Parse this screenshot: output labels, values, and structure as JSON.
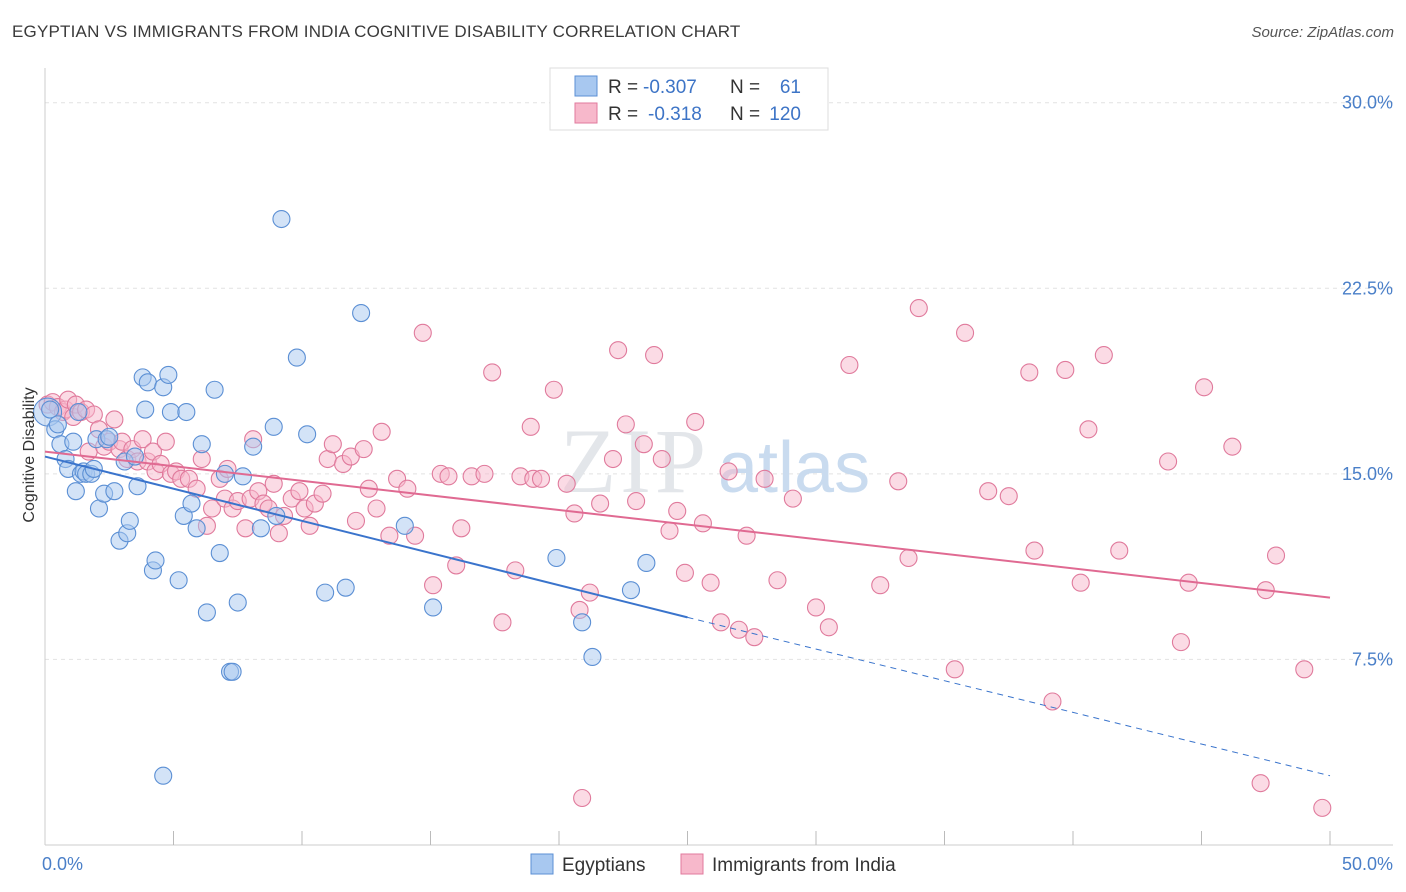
{
  "title": "EGYPTIAN VS IMMIGRANTS FROM INDIA COGNITIVE DISABILITY CORRELATION CHART",
  "source": "Source: ZipAtlas.com",
  "watermark": {
    "zip": "ZIP",
    "atlas": "atlas"
  },
  "legend": {
    "rows": [
      {
        "r_label": "R =",
        "r_value": "-0.307",
        "n_label": "N =",
        "n_value": "61",
        "color": "#a8c8f0",
        "stroke": "#5b8fd4"
      },
      {
        "r_label": "R =",
        "r_value": "-0.318",
        "n_label": "N =",
        "n_value": "120",
        "color": "#f7b8cb",
        "stroke": "#e07a9c"
      }
    ]
  },
  "bottom_legend": [
    {
      "label": "Egyptians",
      "color": "#a8c8f0",
      "stroke": "#5b8fd4"
    },
    {
      "label": "Immigrants from India",
      "color": "#f7b8cb",
      "stroke": "#e07a9c"
    }
  ],
  "chart_data": {
    "type": "scatter",
    "ylabel": "Cognitive Disability",
    "xlim": [
      0,
      50
    ],
    "ylim": [
      0,
      31
    ],
    "x_tick_labels": [
      "0.0%",
      "50.0%"
    ],
    "y_ticks": [
      7.5,
      15.0,
      22.5,
      30.0
    ],
    "y_tick_labels": [
      "7.5%",
      "15.0%",
      "22.5%",
      "30.0%"
    ],
    "grid": true,
    "series": [
      {
        "name": "Egyptians",
        "color": "#5b8fd4",
        "fill": "#a8c8f0",
        "trend": {
          "x0": 0,
          "y0": 15.7,
          "x1": 25,
          "y1": 9.2,
          "dash_x1": 50,
          "dash_y1": 2.8
        },
        "points": [
          [
            0.1,
            17.5
          ],
          [
            0.2,
            17.6
          ],
          [
            0.4,
            16.8
          ],
          [
            0.5,
            17.0
          ],
          [
            0.6,
            16.2
          ],
          [
            0.8,
            15.6
          ],
          [
            0.9,
            15.2
          ],
          [
            1.1,
            16.3
          ],
          [
            1.2,
            14.3
          ],
          [
            1.3,
            17.5
          ],
          [
            1.4,
            15.0
          ],
          [
            1.5,
            15.1
          ],
          [
            1.6,
            15.0
          ],
          [
            1.8,
            15.0
          ],
          [
            1.9,
            15.2
          ],
          [
            2.0,
            16.4
          ],
          [
            2.1,
            13.6
          ],
          [
            2.3,
            14.2
          ],
          [
            2.4,
            16.4
          ],
          [
            2.5,
            16.5
          ],
          [
            2.7,
            14.3
          ],
          [
            2.9,
            12.3
          ],
          [
            3.1,
            15.5
          ],
          [
            3.2,
            12.6
          ],
          [
            3.3,
            13.1
          ],
          [
            3.5,
            15.7
          ],
          [
            3.6,
            14.5
          ],
          [
            3.8,
            18.9
          ],
          [
            3.9,
            17.6
          ],
          [
            4.0,
            18.7
          ],
          [
            4.2,
            11.1
          ],
          [
            4.3,
            11.5
          ],
          [
            4.6,
            18.5
          ],
          [
            4.8,
            19.0
          ],
          [
            4.9,
            17.5
          ],
          [
            5.2,
            10.7
          ],
          [
            5.4,
            13.3
          ],
          [
            5.5,
            17.5
          ],
          [
            5.7,
            13.8
          ],
          [
            5.9,
            12.8
          ],
          [
            6.1,
            16.2
          ],
          [
            6.3,
            9.4
          ],
          [
            6.6,
            18.4
          ],
          [
            6.8,
            11.8
          ],
          [
            7.0,
            15.0
          ],
          [
            7.2,
            7.0
          ],
          [
            7.3,
            7.0
          ],
          [
            7.5,
            9.8
          ],
          [
            7.7,
            14.9
          ],
          [
            8.1,
            16.1
          ],
          [
            8.4,
            12.8
          ],
          [
            8.9,
            16.9
          ],
          [
            9.0,
            13.3
          ],
          [
            9.2,
            25.3
          ],
          [
            9.8,
            19.7
          ],
          [
            10.2,
            16.6
          ],
          [
            10.9,
            10.2
          ],
          [
            11.7,
            10.4
          ],
          [
            12.3,
            21.5
          ],
          [
            14.0,
            12.9
          ],
          [
            15.1,
            9.6
          ],
          [
            19.9,
            11.6
          ],
          [
            20.9,
            9.0
          ],
          [
            21.3,
            7.6
          ],
          [
            22.8,
            10.3
          ],
          [
            23.4,
            11.4
          ],
          [
            4.6,
            2.8
          ]
        ]
      },
      {
        "name": "Immigrants from India",
        "color": "#e07a9c",
        "fill": "#f7b8cb",
        "trend": {
          "x0": 0,
          "y0": 15.9,
          "x1": 50,
          "y1": 10.0
        },
        "points": [
          [
            0.1,
            17.8
          ],
          [
            0.3,
            17.9
          ],
          [
            0.5,
            17.7
          ],
          [
            0.7,
            17.5
          ],
          [
            0.8,
            17.6
          ],
          [
            0.9,
            18.0
          ],
          [
            1.1,
            17.3
          ],
          [
            1.2,
            17.8
          ],
          [
            1.4,
            17.5
          ],
          [
            1.6,
            17.6
          ],
          [
            1.7,
            15.9
          ],
          [
            1.9,
            17.4
          ],
          [
            2.1,
            16.8
          ],
          [
            2.3,
            16.1
          ],
          [
            2.5,
            16.3
          ],
          [
            2.7,
            17.2
          ],
          [
            2.9,
            16.0
          ],
          [
            3.0,
            16.3
          ],
          [
            3.2,
            15.6
          ],
          [
            3.4,
            16.0
          ],
          [
            3.6,
            15.5
          ],
          [
            3.8,
            16.4
          ],
          [
            4.0,
            15.5
          ],
          [
            4.2,
            15.9
          ],
          [
            4.3,
            15.1
          ],
          [
            4.5,
            15.4
          ],
          [
            4.7,
            16.3
          ],
          [
            4.9,
            15.0
          ],
          [
            5.1,
            15.1
          ],
          [
            5.3,
            14.8
          ],
          [
            5.6,
            14.8
          ],
          [
            5.9,
            14.4
          ],
          [
            6.1,
            15.6
          ],
          [
            6.3,
            12.9
          ],
          [
            6.5,
            13.6
          ],
          [
            6.8,
            14.8
          ],
          [
            7.0,
            14.0
          ],
          [
            7.1,
            15.2
          ],
          [
            7.3,
            13.6
          ],
          [
            7.5,
            13.9
          ],
          [
            7.8,
            12.8
          ],
          [
            8.0,
            14.0
          ],
          [
            8.1,
            16.4
          ],
          [
            8.3,
            14.3
          ],
          [
            8.5,
            13.8
          ],
          [
            8.7,
            13.6
          ],
          [
            8.9,
            14.6
          ],
          [
            9.1,
            12.6
          ],
          [
            9.3,
            13.3
          ],
          [
            9.6,
            14.0
          ],
          [
            9.9,
            14.3
          ],
          [
            10.1,
            13.6
          ],
          [
            10.3,
            12.9
          ],
          [
            10.5,
            13.8
          ],
          [
            10.8,
            14.2
          ],
          [
            11.0,
            15.6
          ],
          [
            11.2,
            16.2
          ],
          [
            11.6,
            15.4
          ],
          [
            11.9,
            15.7
          ],
          [
            12.1,
            13.1
          ],
          [
            12.4,
            16.0
          ],
          [
            12.6,
            14.4
          ],
          [
            12.9,
            13.6
          ],
          [
            13.1,
            16.7
          ],
          [
            13.4,
            12.5
          ],
          [
            13.7,
            14.8
          ],
          [
            14.1,
            14.4
          ],
          [
            14.4,
            12.5
          ],
          [
            14.7,
            20.7
          ],
          [
            15.1,
            10.5
          ],
          [
            15.4,
            15.0
          ],
          [
            15.7,
            14.9
          ],
          [
            16.0,
            11.3
          ],
          [
            16.2,
            12.8
          ],
          [
            16.6,
            14.9
          ],
          [
            17.1,
            15.0
          ],
          [
            17.4,
            19.1
          ],
          [
            17.8,
            9.0
          ],
          [
            18.3,
            11.1
          ],
          [
            18.5,
            14.9
          ],
          [
            18.9,
            16.9
          ],
          [
            19.0,
            14.8
          ],
          [
            19.3,
            14.8
          ],
          [
            19.8,
            18.4
          ],
          [
            20.3,
            14.6
          ],
          [
            20.6,
            13.4
          ],
          [
            20.8,
            9.5
          ],
          [
            21.2,
            10.2
          ],
          [
            21.6,
            13.8
          ],
          [
            22.1,
            15.6
          ],
          [
            22.3,
            20.0
          ],
          [
            22.6,
            17.0
          ],
          [
            23.0,
            13.9
          ],
          [
            23.3,
            16.2
          ],
          [
            23.7,
            19.8
          ],
          [
            24.0,
            15.6
          ],
          [
            24.3,
            12.7
          ],
          [
            24.6,
            13.5
          ],
          [
            24.9,
            11.0
          ],
          [
            25.3,
            17.1
          ],
          [
            25.6,
            13.0
          ],
          [
            25.9,
            10.6
          ],
          [
            26.3,
            9.0
          ],
          [
            26.6,
            15.1
          ],
          [
            27.0,
            8.7
          ],
          [
            27.3,
            12.5
          ],
          [
            27.6,
            8.4
          ],
          [
            28.0,
            14.8
          ],
          [
            28.5,
            10.7
          ],
          [
            29.1,
            14.0
          ],
          [
            30.0,
            9.6
          ],
          [
            30.5,
            8.8
          ],
          [
            31.3,
            19.4
          ],
          [
            32.5,
            10.5
          ],
          [
            33.2,
            14.7
          ],
          [
            33.6,
            11.6
          ],
          [
            34.0,
            21.7
          ],
          [
            35.4,
            7.1
          ],
          [
            35.8,
            20.7
          ],
          [
            36.7,
            14.3
          ],
          [
            37.5,
            14.1
          ],
          [
            38.3,
            19.1
          ],
          [
            39.2,
            5.8
          ],
          [
            39.7,
            19.2
          ],
          [
            40.3,
            10.6
          ],
          [
            40.6,
            16.8
          ],
          [
            41.2,
            19.8
          ],
          [
            41.8,
            11.9
          ],
          [
            44.2,
            8.2
          ],
          [
            44.5,
            10.6
          ],
          [
            45.1,
            18.5
          ],
          [
            46.2,
            16.1
          ],
          [
            47.5,
            10.3
          ],
          [
            47.9,
            11.7
          ],
          [
            49.0,
            7.1
          ],
          [
            49.7,
            1.5
          ],
          [
            47.3,
            2.5
          ],
          [
            20.9,
            1.9
          ],
          [
            38.5,
            11.9
          ],
          [
            43.7,
            15.5
          ]
        ]
      }
    ]
  }
}
